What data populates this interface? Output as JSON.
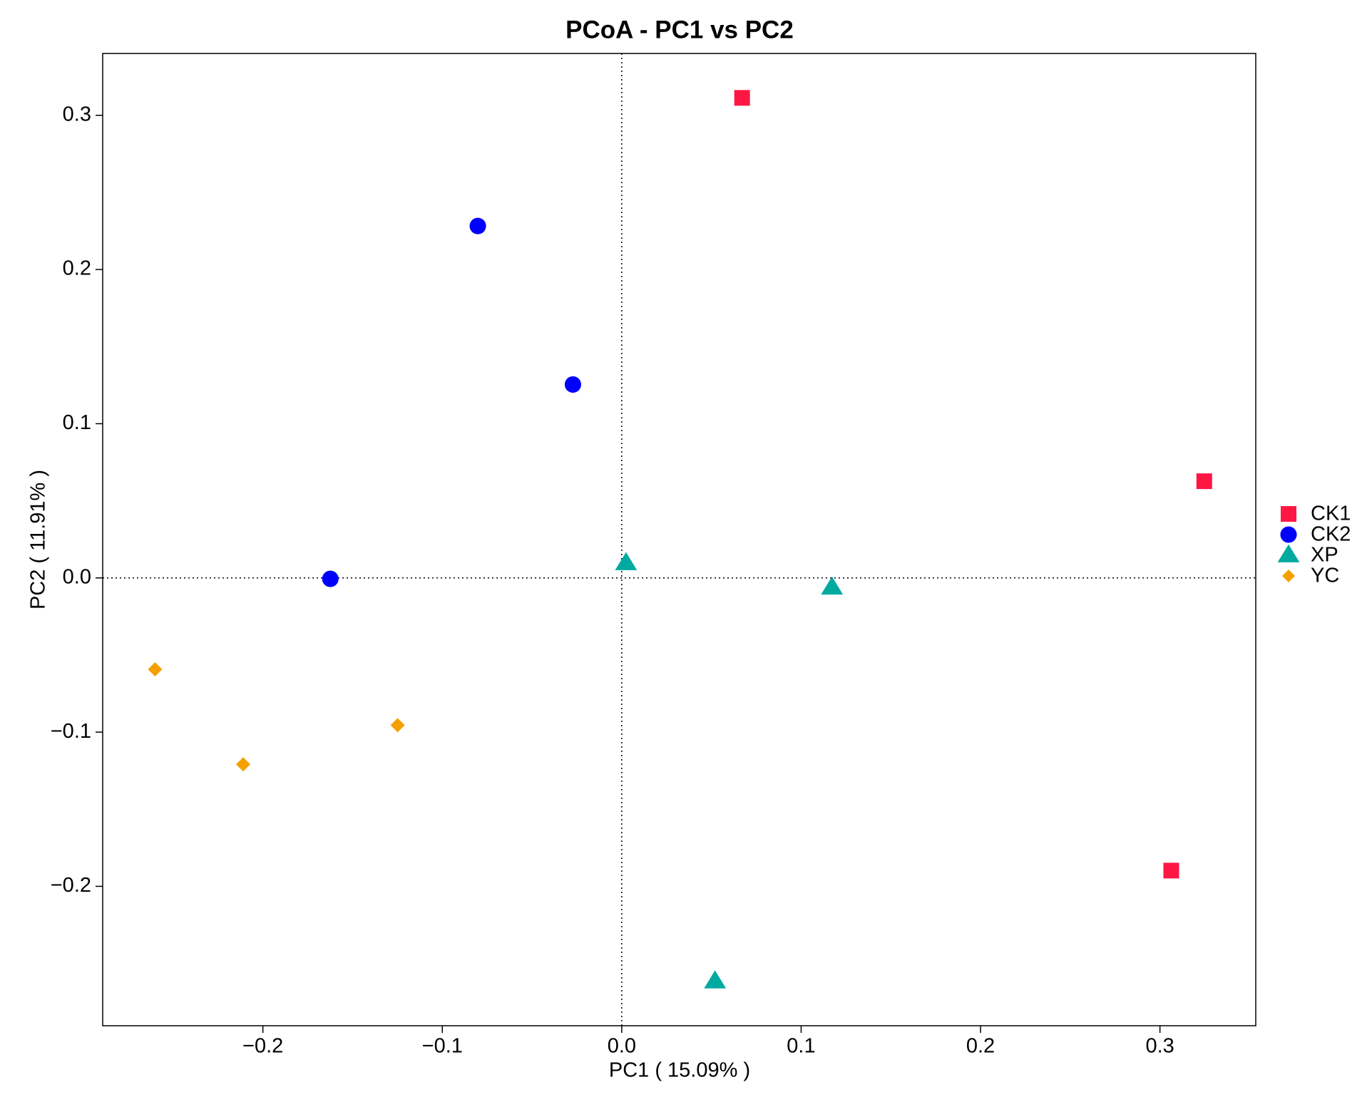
{
  "chart_data": {
    "type": "scatter",
    "title": "PCoA - PC1 vs PC2",
    "x_label": "PC1 ( 15.09% )",
    "y_label": "PC2 ( 11.91% )",
    "xlim": [
      -0.2893,
      0.3534
    ],
    "ylim": [
      -0.2904,
      0.3401
    ],
    "xticks": [
      {
        "value": -0.2,
        "label": "−0.2"
      },
      {
        "value": -0.1,
        "label": "−0.1"
      },
      {
        "value": 0,
        "label": "0.0"
      },
      0.1,
      0.2,
      0.3
    ],
    "yticks": [
      {
        "value": -0.2,
        "label": "−0.2"
      },
      {
        "value": -0.1,
        "label": "−0.1"
      },
      {
        "value": 0,
        "label": "0.0"
      },
      0.1,
      0.2,
      0.3
    ],
    "zero_lines": true,
    "legend": "right",
    "series": [
      {
        "name": "CK1",
        "color": "#ff1744",
        "marker": "square",
        "x": [
          0.0671,
          0.3247,
          0.3063
        ],
        "values": [
          0.3113,
          0.0627,
          -0.1898
        ]
      },
      {
        "name": "CK2",
        "color": "#0000ff",
        "marker": "circle",
        "x": [
          -0.0802,
          -0.0272,
          -0.1624
        ],
        "values": [
          0.2282,
          0.1254,
          -0.0006
        ]
      },
      {
        "name": "XP",
        "color": "#00aaa0",
        "marker": "triangle",
        "x": [
          0.0024,
          0.1172,
          0.052
        ],
        "values": [
          0.0096,
          -0.0062,
          -0.2616
        ]
      },
      {
        "name": "YC",
        "color": "#f5a000",
        "marker": "diamond",
        "x": [
          -0.2601,
          -0.211,
          -0.1249
        ],
        "values": [
          -0.0593,
          -0.1209,
          -0.0955
        ]
      }
    ]
  }
}
